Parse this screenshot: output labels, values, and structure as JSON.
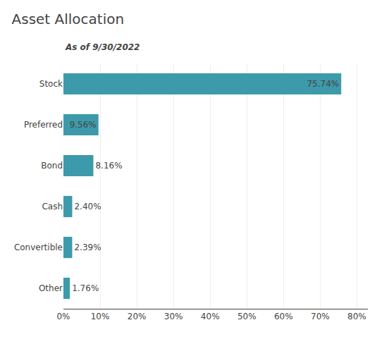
{
  "chart_data": {
    "type": "bar",
    "title": "Asset Allocation",
    "subtitle": "As of 9/30/2022",
    "orientation": "horizontal",
    "categories": [
      "Other",
      "Convertible",
      "Cash",
      "Bond",
      "Preferred",
      "Stock"
    ],
    "values": [
      1.76,
      2.39,
      2.4,
      8.16,
      9.56,
      75.74
    ],
    "value_labels": [
      "1.76%",
      "2.39%",
      "2.40%",
      "8.16%",
      "9.56%",
      "75.74%"
    ],
    "data_labels": true,
    "color": "#3d9aaa",
    "xlim": [
      0,
      83
    ],
    "xticks": [
      {
        "value": 0,
        "label": "0%"
      },
      {
        "value": 10,
        "label": "10%"
      },
      {
        "value": 20,
        "label": "20%"
      },
      {
        "value": 30,
        "label": "30%"
      },
      {
        "value": 40,
        "label": "40%"
      },
      {
        "value": 50,
        "label": "50%"
      },
      {
        "value": 60,
        "label": "60%"
      },
      {
        "value": 70,
        "label": "70%"
      },
      {
        "value": 80,
        "label": "80%"
      }
    ],
    "grid": true
  }
}
